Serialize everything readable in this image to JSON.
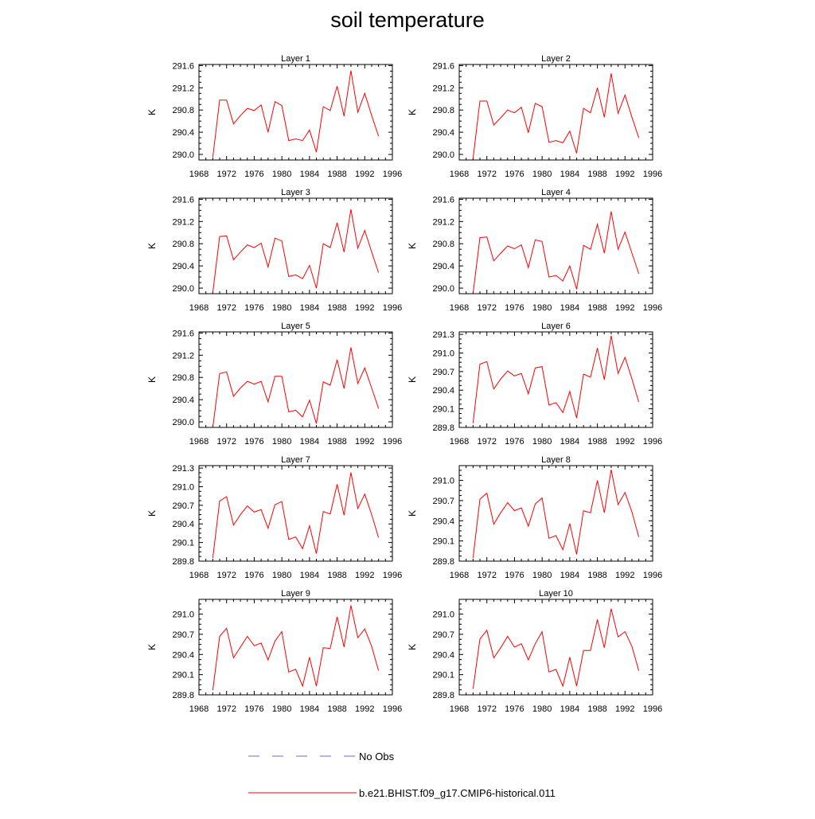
{
  "figure": {
    "title": "soil temperature"
  },
  "legend": {
    "placement": "bottom",
    "items": [
      {
        "label": "No Obs",
        "color": "#6b6bd6",
        "dash": "dashed"
      },
      {
        "label": "b.e21.BHIST.f09_g17.CMIP6-historical.011",
        "color": "#ff0000",
        "dash": "solid"
      }
    ]
  },
  "chart_data": [
    {
      "type": "line",
      "title": "Layer 1",
      "ylabel": "K",
      "xlim": [
        1968,
        1996
      ],
      "xticks": [
        "1968",
        "1972",
        "1976",
        "1980",
        "1984",
        "1988",
        "1992",
        "1996"
      ],
      "ylim": [
        289.9,
        291.62
      ],
      "yticks": [
        "290.0",
        "290.4",
        "290.8",
        "291.2",
        "291.6"
      ],
      "series": [
        {
          "color": "#ff0000",
          "x": [
            1970,
            1971,
            1972,
            1973,
            1974,
            1975,
            1976,
            1977,
            1978,
            1979,
            1980,
            1981,
            1982,
            1983,
            1984,
            1985,
            1986,
            1987,
            1988,
            1989,
            1990,
            1991,
            1992,
            1993,
            1994
          ],
          "y": [
            289.95,
            290.98,
            290.98,
            290.55,
            290.7,
            290.83,
            290.79,
            290.89,
            290.4,
            290.95,
            290.88,
            290.25,
            290.28,
            290.25,
            290.44,
            290.04,
            290.86,
            290.79,
            291.23,
            290.69,
            291.51,
            290.76,
            291.1,
            290.7,
            290.33
          ]
        }
      ]
    },
    {
      "type": "line",
      "title": "Layer 2",
      "ylabel": "K",
      "xlim": [
        1968,
        1996
      ],
      "xticks": [
        "1968",
        "1972",
        "1976",
        "1980",
        "1984",
        "1988",
        "1992",
        "1996"
      ],
      "ylim": [
        289.9,
        291.62
      ],
      "yticks": [
        "290.0",
        "290.4",
        "290.8",
        "291.2",
        "291.6"
      ],
      "series": [
        {
          "color": "#ff0000",
          "x": [
            1970,
            1971,
            1972,
            1973,
            1974,
            1975,
            1976,
            1977,
            1978,
            1979,
            1980,
            1981,
            1982,
            1983,
            1984,
            1985,
            1986,
            1987,
            1988,
            1989,
            1990,
            1991,
            1992,
            1993,
            1994
          ],
          "y": [
            289.93,
            290.96,
            290.96,
            290.53,
            290.66,
            290.8,
            290.75,
            290.85,
            290.39,
            290.92,
            290.86,
            290.22,
            290.25,
            290.21,
            290.42,
            290.02,
            290.83,
            290.75,
            291.2,
            290.67,
            291.46,
            290.74,
            291.07,
            290.67,
            290.3
          ]
        }
      ]
    },
    {
      "type": "line",
      "title": "Layer 3",
      "ylabel": "K",
      "xlim": [
        1968,
        1996
      ],
      "xticks": [
        "1968",
        "1972",
        "1976",
        "1980",
        "1984",
        "1988",
        "1992",
        "1996"
      ],
      "ylim": [
        289.9,
        291.62
      ],
      "yticks": [
        "290.0",
        "290.4",
        "290.8",
        "291.2",
        "291.6"
      ],
      "series": [
        {
          "color": "#ff0000",
          "x": [
            1970,
            1971,
            1972,
            1973,
            1974,
            1975,
            1976,
            1977,
            1978,
            1979,
            1980,
            1981,
            1982,
            1983,
            1984,
            1985,
            1986,
            1987,
            1988,
            1989,
            1990,
            1991,
            1992,
            1993,
            1994
          ],
          "y": [
            289.92,
            290.93,
            290.94,
            290.51,
            290.65,
            290.78,
            290.73,
            290.81,
            290.38,
            290.9,
            290.85,
            290.21,
            290.24,
            290.17,
            290.41,
            290.0,
            290.8,
            290.73,
            291.18,
            290.65,
            291.42,
            290.72,
            291.04,
            290.65,
            290.28
          ]
        }
      ]
    },
    {
      "type": "line",
      "title": "Layer 4",
      "ylabel": "K",
      "xlim": [
        1968,
        1996
      ],
      "xticks": [
        "1968",
        "1972",
        "1976",
        "1980",
        "1984",
        "1988",
        "1992",
        "1996"
      ],
      "ylim": [
        289.9,
        291.62
      ],
      "yticks": [
        "290.0",
        "290.4",
        "290.8",
        "291.2",
        "291.6"
      ],
      "series": [
        {
          "color": "#ff0000",
          "x": [
            1970,
            1971,
            1972,
            1973,
            1974,
            1975,
            1976,
            1977,
            1978,
            1979,
            1980,
            1981,
            1982,
            1983,
            1984,
            1985,
            1986,
            1987,
            1988,
            1989,
            1990,
            1991,
            1992,
            1993,
            1994
          ],
          "y": [
            289.91,
            290.91,
            290.92,
            290.49,
            290.63,
            290.76,
            290.71,
            290.78,
            290.37,
            290.87,
            290.84,
            290.2,
            290.23,
            290.13,
            290.4,
            289.98,
            290.77,
            290.7,
            291.15,
            290.63,
            291.38,
            290.7,
            291.01,
            290.63,
            290.26
          ]
        }
      ]
    },
    {
      "type": "line",
      "title": "Layer 5",
      "ylabel": "K",
      "xlim": [
        1968,
        1996
      ],
      "xticks": [
        "1968",
        "1972",
        "1976",
        "1980",
        "1984",
        "1988",
        "1992",
        "1996"
      ],
      "ylim": [
        289.9,
        291.62
      ],
      "yticks": [
        "290.0",
        "290.4",
        "290.8",
        "291.2",
        "291.6"
      ],
      "series": [
        {
          "color": "#ff0000",
          "x": [
            1970,
            1971,
            1972,
            1973,
            1974,
            1975,
            1976,
            1977,
            1978,
            1979,
            1980,
            1981,
            1982,
            1983,
            1984,
            1985,
            1986,
            1987,
            1988,
            1989,
            1990,
            1991,
            1992,
            1993,
            1994
          ],
          "y": [
            289.9,
            290.87,
            290.9,
            290.46,
            290.61,
            290.73,
            290.68,
            290.73,
            290.36,
            290.82,
            290.82,
            290.18,
            290.21,
            290.09,
            290.39,
            289.97,
            290.72,
            290.66,
            291.12,
            290.6,
            291.34,
            290.69,
            290.97,
            290.61,
            290.24
          ]
        }
      ]
    },
    {
      "type": "line",
      "title": "Layer 6",
      "ylabel": "K",
      "xlim": [
        1968,
        1996
      ],
      "xticks": [
        "1968",
        "1972",
        "1976",
        "1980",
        "1984",
        "1988",
        "1992",
        "1996"
      ],
      "ylim": [
        289.8,
        291.34
      ],
      "yticks": [
        "289.8",
        "290.1",
        "290.4",
        "290.7",
        "291.0",
        "291.3"
      ],
      "series": [
        {
          "color": "#ff0000",
          "x": [
            1970,
            1971,
            1972,
            1973,
            1974,
            1975,
            1976,
            1977,
            1978,
            1979,
            1980,
            1981,
            1982,
            1983,
            1984,
            1985,
            1986,
            1987,
            1988,
            1989,
            1990,
            1991,
            1992,
            1993,
            1994
          ],
          "y": [
            289.87,
            290.82,
            290.86,
            290.42,
            290.58,
            290.71,
            290.63,
            290.67,
            290.34,
            290.76,
            290.78,
            290.16,
            290.2,
            290.04,
            290.38,
            289.95,
            290.66,
            290.61,
            291.08,
            290.57,
            291.28,
            290.67,
            290.93,
            290.58,
            290.21
          ]
        }
      ]
    },
    {
      "type": "line",
      "title": "Layer 7",
      "ylabel": "K",
      "xlim": [
        1968,
        1996
      ],
      "xticks": [
        "1968",
        "1972",
        "1976",
        "1980",
        "1984",
        "1988",
        "1992",
        "1996"
      ],
      "ylim": [
        289.8,
        291.34
      ],
      "yticks": [
        "289.8",
        "290.1",
        "290.4",
        "290.7",
        "291.0",
        "291.3"
      ],
      "series": [
        {
          "color": "#ff0000",
          "x": [
            1970,
            1971,
            1972,
            1973,
            1974,
            1975,
            1976,
            1977,
            1978,
            1979,
            1980,
            1981,
            1982,
            1983,
            1984,
            1985,
            1986,
            1987,
            1988,
            1989,
            1990,
            1991,
            1992,
            1993,
            1994
          ],
          "y": [
            289.85,
            290.77,
            290.84,
            290.38,
            290.55,
            290.69,
            290.59,
            290.63,
            290.33,
            290.71,
            290.76,
            290.15,
            290.19,
            290.0,
            290.37,
            289.92,
            290.6,
            290.56,
            291.04,
            290.54,
            291.23,
            290.65,
            290.88,
            290.55,
            290.18
          ]
        }
      ]
    },
    {
      "type": "line",
      "title": "Layer 8",
      "ylabel": "K",
      "xlim": [
        1968,
        1996
      ],
      "xticks": [
        "1968",
        "1972",
        "1976",
        "1980",
        "1984",
        "1988",
        "1992",
        "1996"
      ],
      "ylim": [
        289.8,
        291.22
      ],
      "yticks": [
        "289.8",
        "290.1",
        "290.4",
        "290.7",
        "291.0"
      ],
      "series": [
        {
          "color": "#ff0000",
          "x": [
            1970,
            1971,
            1972,
            1973,
            1974,
            1975,
            1976,
            1977,
            1978,
            1979,
            1980,
            1981,
            1982,
            1983,
            1984,
            1985,
            1986,
            1987,
            1988,
            1989,
            1990,
            1991,
            1992,
            1993,
            1994
          ],
          "y": [
            289.85,
            290.72,
            290.81,
            290.35,
            290.52,
            290.67,
            290.55,
            290.59,
            290.32,
            290.65,
            290.74,
            290.14,
            290.18,
            289.97,
            290.36,
            289.9,
            290.55,
            290.52,
            291.0,
            290.52,
            291.16,
            290.64,
            290.82,
            290.53,
            290.16
          ]
        }
      ]
    },
    {
      "type": "line",
      "title": "Layer 9",
      "ylabel": "K",
      "xlim": [
        1968,
        1996
      ],
      "xticks": [
        "1968",
        "1972",
        "1976",
        "1980",
        "1984",
        "1988",
        "1992",
        "1996"
      ],
      "ylim": [
        289.8,
        291.22
      ],
      "yticks": [
        "289.8",
        "290.1",
        "290.4",
        "290.7",
        "291.0"
      ],
      "series": [
        {
          "color": "#ff0000",
          "x": [
            1970,
            1971,
            1972,
            1973,
            1974,
            1975,
            1976,
            1977,
            1978,
            1979,
            1980,
            1981,
            1982,
            1983,
            1984,
            1985,
            1986,
            1987,
            1988,
            1989,
            1990,
            1991,
            1992,
            1993,
            1994
          ],
          "y": [
            289.87,
            290.67,
            290.79,
            290.35,
            290.51,
            290.67,
            290.53,
            290.57,
            290.32,
            290.6,
            290.74,
            290.14,
            290.18,
            289.93,
            290.36,
            289.93,
            290.5,
            290.49,
            290.96,
            290.51,
            291.13,
            290.65,
            290.78,
            290.52,
            290.16
          ]
        }
      ]
    },
    {
      "type": "line",
      "title": "Layer 10",
      "ylabel": "K",
      "xlim": [
        1968,
        1996
      ],
      "xticks": [
        "1968",
        "1972",
        "1976",
        "1980",
        "1984",
        "1988",
        "1992",
        "1996"
      ],
      "ylim": [
        289.8,
        291.22
      ],
      "yticks": [
        "289.8",
        "290.1",
        "290.4",
        "290.7",
        "291.0"
      ],
      "series": [
        {
          "color": "#ff0000",
          "x": [
            1970,
            1971,
            1972,
            1973,
            1974,
            1975,
            1976,
            1977,
            1978,
            1979,
            1980,
            1981,
            1982,
            1983,
            1984,
            1985,
            1986,
            1987,
            1988,
            1989,
            1990,
            1991,
            1992,
            1993,
            1994
          ],
          "y": [
            289.89,
            290.63,
            290.76,
            290.35,
            290.5,
            290.67,
            290.51,
            290.56,
            290.32,
            290.56,
            290.74,
            290.14,
            290.18,
            289.93,
            290.36,
            289.93,
            290.46,
            290.46,
            290.92,
            290.5,
            291.08,
            290.66,
            290.74,
            290.52,
            290.16
          ]
        }
      ]
    }
  ]
}
